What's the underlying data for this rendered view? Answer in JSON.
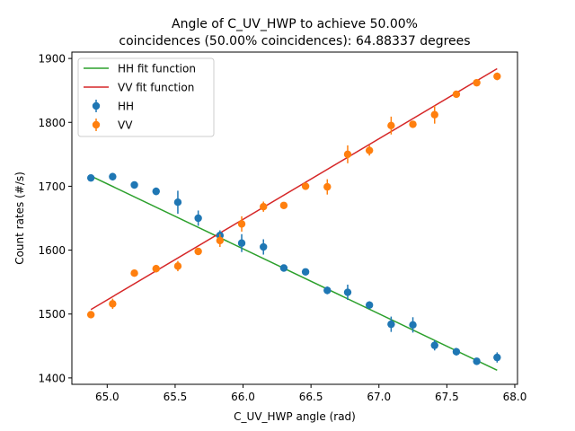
{
  "chart_data": {
    "type": "scatter",
    "title_line1": "Angle of C_UV_HWP to achieve 50.00%",
    "title_line2": "coincidences (50.00% coincidences): 64.88337 degrees",
    "xlabel": "C_UV_HWP angle (rad)",
    "ylabel": "Count rates (#/s)",
    "xlim": [
      64.74,
      68.02
    ],
    "ylim": [
      1390,
      1910
    ],
    "xticks": [
      65.0,
      65.5,
      66.0,
      66.5,
      67.0,
      67.5,
      68.0
    ],
    "xtick_labels": [
      "65.0",
      "65.5",
      "66.0",
      "66.5",
      "67.0",
      "67.5",
      "68.0"
    ],
    "yticks": [
      1400,
      1500,
      1600,
      1700,
      1800,
      1900
    ],
    "ytick_labels": [
      "1400",
      "1500",
      "1600",
      "1700",
      "1800",
      "1900"
    ],
    "legend_position": "top-left",
    "legend": [
      {
        "label": "HH fit function",
        "kind": "line",
        "color": "#2ca02c"
      },
      {
        "label": "VV fit function",
        "kind": "line",
        "color": "#d62728"
      },
      {
        "label": "HH",
        "kind": "errorbar",
        "color": "#1f77b4"
      },
      {
        "label": "VV",
        "kind": "errorbar",
        "color": "#ff7f0e"
      }
    ],
    "fits": [
      {
        "name": "HH fit function",
        "color": "#2ca02c",
        "x": [
          64.88,
          67.87
        ],
        "y": [
          1716,
          1412
        ]
      },
      {
        "name": "VV fit function",
        "color": "#d62728",
        "x": [
          64.88,
          67.87
        ],
        "y": [
          1507,
          1884
        ]
      }
    ],
    "series": [
      {
        "name": "HH",
        "color": "#1f77b4",
        "x": [
          64.88,
          65.04,
          65.2,
          65.36,
          65.52,
          65.67,
          65.83,
          65.99,
          66.15,
          66.3,
          66.46,
          66.62,
          66.77,
          66.93,
          67.09,
          67.25,
          67.41,
          67.57,
          67.72,
          67.87
        ],
        "y": [
          1713,
          1715,
          1702,
          1692,
          1675,
          1650,
          1623,
          1611,
          1605,
          1572,
          1566,
          1537,
          1534,
          1514,
          1484,
          1483,
          1451,
          1441,
          1426,
          1432
        ],
        "err": [
          4,
          6,
          4,
          6,
          18,
          12,
          8,
          14,
          12,
          4,
          4,
          6,
          12,
          6,
          12,
          12,
          8,
          6,
          4,
          8
        ]
      },
      {
        "name": "VV",
        "color": "#ff7f0e",
        "x": [
          64.88,
          65.04,
          65.2,
          65.36,
          65.52,
          65.67,
          65.83,
          65.99,
          66.15,
          66.3,
          66.46,
          66.62,
          66.77,
          66.93,
          67.09,
          67.25,
          67.41,
          67.57,
          67.72,
          67.87
        ],
        "y": [
          1499,
          1516,
          1564,
          1571,
          1575,
          1598,
          1615,
          1641,
          1668,
          1670,
          1700,
          1699,
          1750,
          1756,
          1795,
          1797,
          1812,
          1844,
          1862,
          1872
        ],
        "err": [
          4,
          8,
          4,
          6,
          8,
          4,
          10,
          12,
          8,
          4,
          4,
          12,
          14,
          8,
          14,
          4,
          14,
          4,
          4,
          6
        ]
      }
    ]
  }
}
